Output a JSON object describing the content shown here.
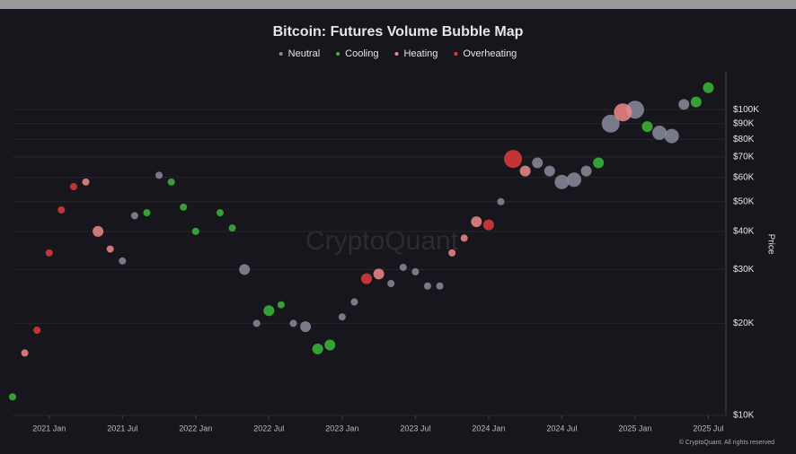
{
  "chart_data": {
    "type": "bubble",
    "title": "Bitcoin: Futures Volume Bubble Map",
    "watermark": "CryptoQuant",
    "y_label": "Price",
    "footer": "© CryptoQuant. All rights reserved",
    "y_scale": "log",
    "grid": true,
    "legend": "top",
    "xlim": [
      "2020-10",
      "2025-08"
    ],
    "xticks": [
      {
        "value": "2021-01",
        "label": "2021 Jan"
      },
      {
        "value": "2021-07",
        "label": "2021 Jul"
      },
      {
        "value": "2022-01",
        "label": "2022 Jan"
      },
      {
        "value": "2022-07",
        "label": "2022 Jul"
      },
      {
        "value": "2023-01",
        "label": "2023 Jan"
      },
      {
        "value": "2023-07",
        "label": "2023 Jul"
      },
      {
        "value": "2024-01",
        "label": "2024 Jan"
      },
      {
        "value": "2024-07",
        "label": "2024 Jul"
      },
      {
        "value": "2025-01",
        "label": "2025 Jan"
      },
      {
        "value": "2025-07",
        "label": "2025 Jul"
      }
    ],
    "ylim": [
      10000,
      133000
    ],
    "yticks": [
      {
        "value": 10000,
        "label": "$10K"
      },
      {
        "value": 20000,
        "label": "$20K"
      },
      {
        "value": 30000,
        "label": "$30K"
      },
      {
        "value": 40000,
        "label": "$40K"
      },
      {
        "value": 50000,
        "label": "$50K"
      },
      {
        "value": 60000,
        "label": "$60K"
      },
      {
        "value": 70000,
        "label": "$70K"
      },
      {
        "value": 80000,
        "label": "$80K"
      },
      {
        "value": 90000,
        "label": "$90K"
      },
      {
        "value": 100000,
        "label": "$100K"
      }
    ],
    "series": [
      {
        "name": "Neutral",
        "color": "#8a8b9c",
        "x": [
          "2021-07",
          "2021-08",
          "2021-10",
          "2022-05",
          "2022-06",
          "2022-09",
          "2022-10",
          "2023-01",
          "2023-02",
          "2023-05",
          "2023-06",
          "2023-07",
          "2023-08",
          "2023-09",
          "2024-02",
          "2024-05",
          "2024-06",
          "2024-07",
          "2024-08",
          "2024-09",
          "2024-11",
          "2025-01",
          "2025-03",
          "2025-04",
          "2025-05"
        ],
        "values": [
          32000,
          45000,
          61000,
          30000,
          20000,
          20000,
          19500,
          21000,
          23500,
          27000,
          30500,
          29500,
          26500,
          26500,
          50000,
          67000,
          63000,
          58000,
          59000,
          63000,
          90000,
          100000,
          84000,
          82000,
          104000
        ],
        "sizes": [
          1,
          1,
          1,
          2,
          1,
          1,
          2,
          1,
          1,
          1,
          1,
          1,
          1,
          1,
          1,
          2,
          2,
          3,
          3,
          2,
          4,
          4,
          3,
          3,
          2
        ]
      },
      {
        "name": "Cooling",
        "color": "#3db83a",
        "x": [
          "2020-10",
          "2021-09",
          "2021-11",
          "2021-12",
          "2022-01",
          "2022-03",
          "2022-04",
          "2022-07",
          "2022-08",
          "2022-11",
          "2022-12",
          "2024-10",
          "2025-02",
          "2025-06",
          "2025-07"
        ],
        "values": [
          11500,
          46000,
          58000,
          48000,
          40000,
          46000,
          41000,
          22000,
          23000,
          16500,
          17000,
          67000,
          88000,
          106000,
          118000
        ],
        "sizes": [
          1,
          1,
          1,
          1,
          1,
          1,
          1,
          2,
          1,
          2,
          2,
          2,
          2,
          2,
          2
        ]
      },
      {
        "name": "Heating",
        "color": "#f08a8a",
        "x": [
          "2020-11",
          "2021-04",
          "2021-05",
          "2021-06",
          "2023-04",
          "2023-10",
          "2023-11",
          "2023-12",
          "2024-04",
          "2024-12"
        ],
        "values": [
          16000,
          58000,
          40000,
          35000,
          29000,
          34000,
          38000,
          43000,
          63000,
          98000
        ],
        "sizes": [
          1,
          1,
          2,
          1,
          2,
          1,
          1,
          2,
          2,
          4
        ]
      },
      {
        "name": "Overheating",
        "color": "#e03a3a",
        "x": [
          "2020-12",
          "2021-01",
          "2021-02",
          "2021-03",
          "2023-03",
          "2024-01",
          "2024-03"
        ],
        "values": [
          19000,
          34000,
          47000,
          56000,
          28000,
          42000,
          69000
        ],
        "sizes": [
          1,
          1,
          1,
          1,
          2,
          2,
          4
        ]
      }
    ]
  }
}
